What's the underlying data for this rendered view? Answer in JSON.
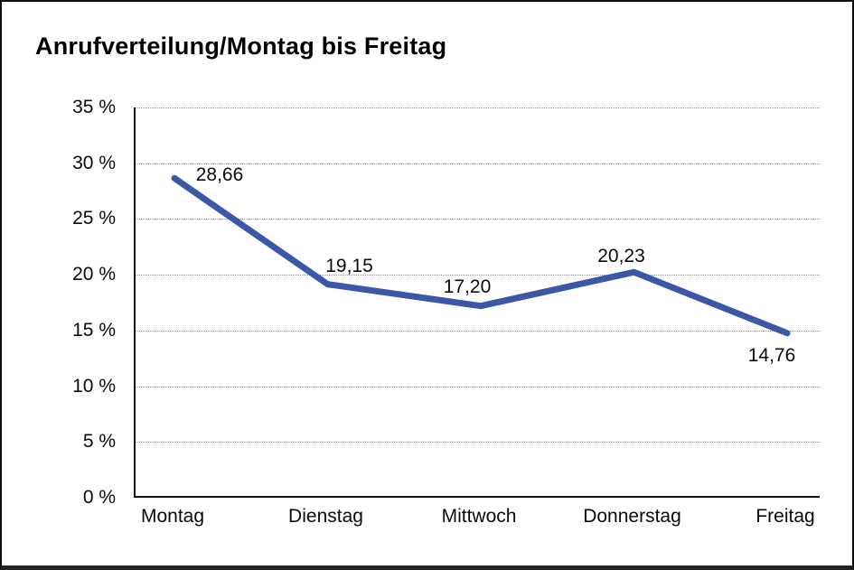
{
  "title": "Anrufverteilung/Montag bis Freitag",
  "colors": {
    "line": "#3a57a8",
    "grid": "#8f8f8f",
    "axis": "#141414",
    "text": "#0a0a0a",
    "background": "#ffffff",
    "border": "#0d0d0d"
  },
  "chart_data": {
    "type": "line",
    "title": "Anrufverteilung/Montag bis Freitag",
    "categories": [
      "Montag",
      "Dienstag",
      "Mittwoch",
      "Donnerstag",
      "Freitag"
    ],
    "values": [
      28.66,
      19.15,
      17.2,
      20.23,
      14.76
    ],
    "point_labels": [
      "28,66",
      "19,15",
      "17,20",
      "20,23",
      "14,76"
    ],
    "xlabel": "",
    "ylabel": "",
    "ylim": [
      0,
      35
    ],
    "y_tick_step": 5,
    "y_tick_values": [
      35,
      30,
      25,
      20,
      15,
      10,
      5,
      0
    ],
    "y_tick_labels": [
      "35 %",
      "30 %",
      "25 %",
      "20 %",
      "15 %",
      "10 %",
      "5 %",
      "0 %"
    ],
    "grid": "horizontal-dotted",
    "legend": "none"
  }
}
